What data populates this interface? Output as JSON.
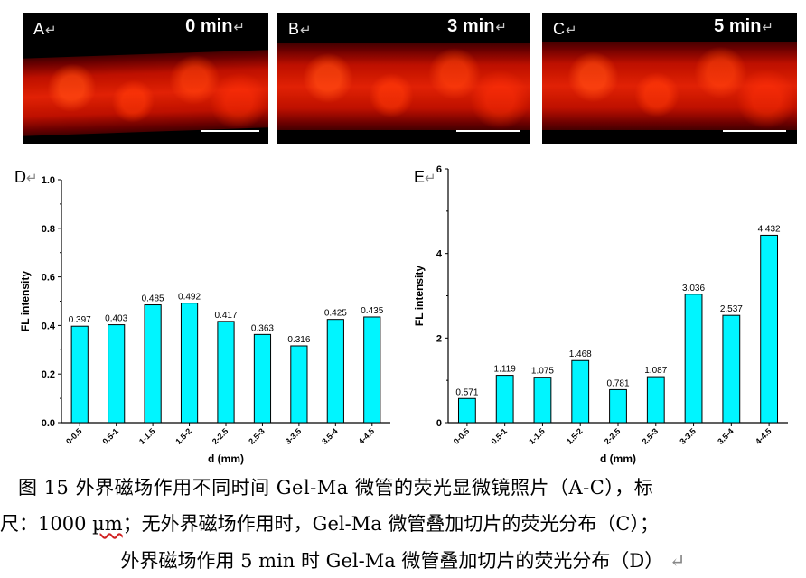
{
  "panels": [
    {
      "label": "A",
      "time": "0 min"
    },
    {
      "label": "B",
      "time": "3 min"
    },
    {
      "label": "C",
      "time": "5 min"
    }
  ],
  "return_mark": "↵",
  "colors": {
    "bar": "#00f5ff",
    "bar_stroke": "#000000",
    "fluorescence": "#d82a10"
  },
  "chart_data": [
    {
      "panel_label": "D",
      "type": "bar",
      "categories": [
        "0-0.5",
        "0.5-1",
        "1-1.5",
        "1.5-2",
        "2-2.5",
        "2.5-3",
        "3-3.5",
        "3.5-4",
        "4-4.5"
      ],
      "values": [
        0.397,
        0.403,
        0.485,
        0.492,
        0.417,
        0.363,
        0.316,
        0.425,
        0.435
      ],
      "data_labels": [
        "0.397",
        "0.403",
        "0.485",
        "0.492",
        "0.417",
        "0.363",
        "0.316",
        "0.425",
        "0.435"
      ],
      "xlabel": "d (mm)",
      "ylabel": "FL intensity",
      "ylim": [
        0,
        1.0
      ],
      "yticks": [
        "0.0",
        "0.2",
        "0.4",
        "0.6",
        "0.8",
        "1.0"
      ],
      "ytick_values": [
        0,
        0.2,
        0.4,
        0.6,
        0.8,
        1.0
      ],
      "grid": false
    },
    {
      "panel_label": "E",
      "type": "bar",
      "categories": [
        "0-0.5",
        "0.5-1",
        "1-1.5",
        "1.5-2",
        "2-2.5",
        "2.5-3",
        "3-3.5",
        "3.5-4",
        "4-4.5"
      ],
      "values": [
        0.571,
        1.119,
        1.075,
        1.468,
        0.781,
        1.087,
        3.036,
        2.537,
        4.432
      ],
      "data_labels": [
        "0.571",
        "1.119",
        "1.075",
        "1.468",
        "0.781",
        "1.087",
        "3.036",
        "2.537",
        "4.432"
      ],
      "xlabel": "d (mm)",
      "ylabel": "FL intensity",
      "ylim": [
        0,
        6
      ],
      "yticks": [
        "0",
        "2",
        "4",
        "6"
      ],
      "ytick_values": [
        0,
        2,
        4,
        6
      ],
      "grid": false
    }
  ],
  "caption": {
    "line1": "图 15 外界磁场作用不同时间 Gel-Ma 微管的荧光显微镜照片（A-C），标",
    "line2_a": "尺：1000 ",
    "line2_um": "µm",
    "line2_b": "；无外界磁场作用时，Gel-Ma 微管叠加切片的荧光分布（C）；",
    "line3": "外界磁场作用 5 min 时 Gel-Ma 微管叠加切片的荧光分布（D）",
    "line3_mark": "↵"
  }
}
